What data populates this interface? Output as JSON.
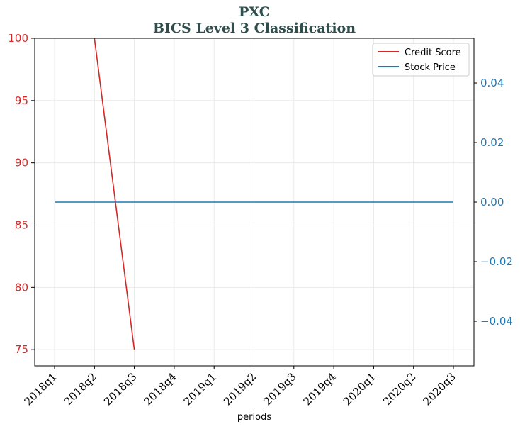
{
  "chart_data": {
    "type": "line",
    "title": "PXC",
    "subtitle": "BICS Level 3 Classification",
    "xlabel": "periods",
    "categories": [
      "2018q1",
      "2018q2",
      "2018q3",
      "2018q4",
      "2019q1",
      "2019q2",
      "2019q3",
      "2019q4",
      "2020q1",
      "2020q2",
      "2020q3"
    ],
    "y_left": {
      "ylim": [
        73.7,
        100
      ],
      "ticks": [
        75,
        80,
        85,
        90,
        95,
        100
      ],
      "color": "#d62728"
    },
    "y_right": {
      "ylim": [
        -0.055,
        0.055
      ],
      "ticks": [
        -0.04,
        -0.02,
        0.0,
        0.02,
        0.04
      ],
      "tick_labels": [
        "−0.04",
        "−0.02",
        "0.00",
        "0.02",
        "0.04"
      ],
      "color": "#1f77b4"
    },
    "series": [
      {
        "name": "Credit Score",
        "axis": "left",
        "color": "#d62728",
        "values": [
          null,
          100,
          75,
          null,
          null,
          null,
          null,
          null,
          null,
          null,
          null
        ]
      },
      {
        "name": "Stock Price",
        "axis": "right",
        "color": "#1f77b4",
        "values": [
          0,
          0,
          0,
          0,
          0,
          0,
          0,
          0,
          0,
          0,
          0
        ]
      }
    ],
    "grid": true,
    "legend": "top-right"
  }
}
